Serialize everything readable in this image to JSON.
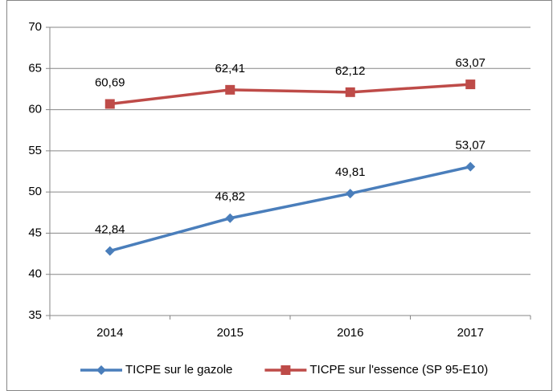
{
  "chart_data": {
    "type": "line",
    "categories": [
      "2014",
      "2015",
      "2016",
      "2017"
    ],
    "series": [
      {
        "name": "TICPE sur le gazole",
        "color": "#4a7ebb",
        "marker": "diamond",
        "values": [
          42.84,
          46.82,
          49.81,
          53.07
        ],
        "value_labels": [
          "42,84",
          "46,82",
          "49,81",
          "53,07"
        ]
      },
      {
        "name": "TICPE sur l'essence (SP 95-E10)",
        "color": "#be4b48",
        "marker": "square",
        "values": [
          60.69,
          62.41,
          62.12,
          63.07
        ],
        "value_labels": [
          "60,69",
          "62,41",
          "62,12",
          "63,07"
        ]
      }
    ],
    "ylim": [
      35,
      70
    ],
    "yticks": [
      35,
      40,
      45,
      50,
      55,
      60,
      65,
      70
    ],
    "grid": true,
    "legend": "bottom"
  }
}
